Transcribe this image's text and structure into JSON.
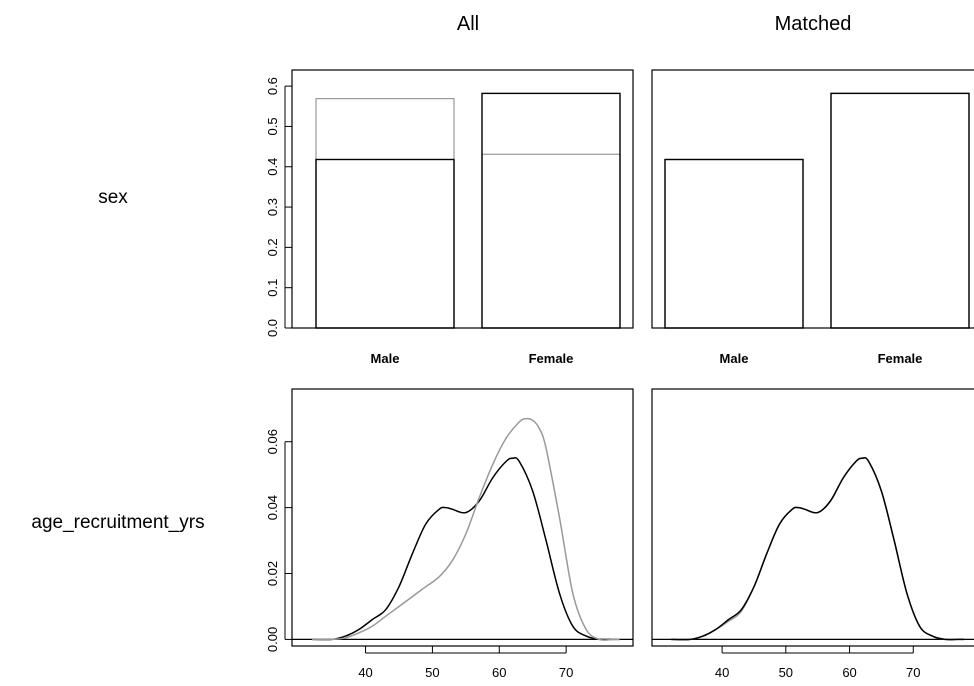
{
  "titles": {
    "all": "All",
    "matched": "Matched"
  },
  "rows": {
    "sex": "sex",
    "age": "age_recruitment_yrs"
  },
  "colors": {
    "treated": "#000000",
    "control": "#999999"
  },
  "chart_data": [
    {
      "type": "bar",
      "panel": "sex-all",
      "title": "All",
      "row_label": "sex",
      "categories": [
        "Male",
        "Female"
      ],
      "series": [
        {
          "values": [
            0.418,
            0.582
          ],
          "color": "#000000"
        },
        {
          "values": [
            0.569,
            0.431
          ],
          "color": "#999999"
        }
      ],
      "yticks": [
        "0.0",
        "0.1",
        "0.2",
        "0.3",
        "0.4",
        "0.5",
        "0.6"
      ],
      "ylim": [
        0,
        0.64
      ]
    },
    {
      "type": "bar",
      "panel": "sex-matched",
      "title": "Matched",
      "row_label": "sex",
      "categories": [
        "Male",
        "Female"
      ],
      "series": [
        {
          "values": [
            0.418,
            0.582
          ],
          "color": "#000000"
        },
        {
          "values": [
            0.418,
            0.582
          ],
          "color": "#999999"
        }
      ],
      "ylim": [
        0,
        0.64
      ]
    },
    {
      "type": "line",
      "panel": "age-all",
      "row_label": "age_recruitment_yrs",
      "xticks": [
        "40",
        "50",
        "60",
        "70"
      ],
      "yticks": [
        "0.00",
        "0.02",
        "0.04",
        "0.06"
      ],
      "xlim": [
        29,
        80
      ],
      "ylim": [
        -0.002,
        0.076
      ],
      "series": [
        {
          "color": "#000000",
          "x": [
            32,
            35,
            37,
            39,
            41,
            43,
            45,
            47,
            49,
            51,
            52,
            53,
            55,
            57,
            59,
            61,
            62,
            63,
            65,
            67,
            69,
            71,
            73,
            75,
            77,
            78
          ],
          "y": [
            0.0,
            0.0,
            0.001,
            0.003,
            0.006,
            0.009,
            0.016,
            0.026,
            0.035,
            0.0395,
            0.04,
            0.0395,
            0.0385,
            0.042,
            0.049,
            0.054,
            0.055,
            0.054,
            0.045,
            0.03,
            0.014,
            0.004,
            0.001,
            0.0,
            0.0,
            0.0
          ]
        },
        {
          "color": "#999999",
          "x": [
            32,
            35,
            37,
            39,
            41,
            43,
            45,
            47,
            49,
            51,
            53,
            55,
            57,
            59,
            61,
            63,
            64,
            65,
            66,
            67,
            69,
            71,
            73,
            75,
            77,
            78
          ],
          "y": [
            0.0,
            0.0,
            0.0005,
            0.002,
            0.004,
            0.007,
            0.01,
            0.013,
            0.016,
            0.019,
            0.024,
            0.032,
            0.043,
            0.053,
            0.061,
            0.066,
            0.067,
            0.0665,
            0.064,
            0.058,
            0.037,
            0.014,
            0.003,
            0.0,
            0.0,
            0.0
          ]
        }
      ]
    },
    {
      "type": "line",
      "panel": "age-matched",
      "row_label": "age_recruitment_yrs",
      "xticks": [
        "40",
        "50",
        "60",
        "70"
      ],
      "xlim": [
        29,
        80
      ],
      "ylim": [
        -0.002,
        0.076
      ],
      "series": [
        {
          "color": "#999999",
          "x": [
            32,
            35,
            37,
            39,
            41,
            43,
            45,
            47,
            49,
            51,
            52,
            53,
            55,
            57,
            59,
            61,
            62,
            63,
            65,
            67,
            69,
            71,
            73,
            75,
            77,
            78
          ],
          "y": [
            0.0,
            0.0,
            0.001,
            0.003,
            0.0055,
            0.0085,
            0.016,
            0.026,
            0.035,
            0.0395,
            0.04,
            0.0395,
            0.0385,
            0.042,
            0.049,
            0.054,
            0.055,
            0.054,
            0.045,
            0.03,
            0.014,
            0.004,
            0.001,
            0.0,
            0.0,
            0.0
          ]
        },
        {
          "color": "#000000",
          "x": [
            32,
            35,
            37,
            39,
            41,
            43,
            45,
            47,
            49,
            51,
            52,
            53,
            55,
            57,
            59,
            61,
            62,
            63,
            65,
            67,
            69,
            71,
            73,
            75,
            77,
            78
          ],
          "y": [
            0.0,
            0.0,
            0.001,
            0.003,
            0.006,
            0.009,
            0.016,
            0.026,
            0.035,
            0.0395,
            0.04,
            0.0395,
            0.0385,
            0.042,
            0.049,
            0.054,
            0.055,
            0.054,
            0.045,
            0.03,
            0.014,
            0.004,
            0.001,
            0.0,
            0.0,
            0.0
          ]
        }
      ]
    }
  ]
}
